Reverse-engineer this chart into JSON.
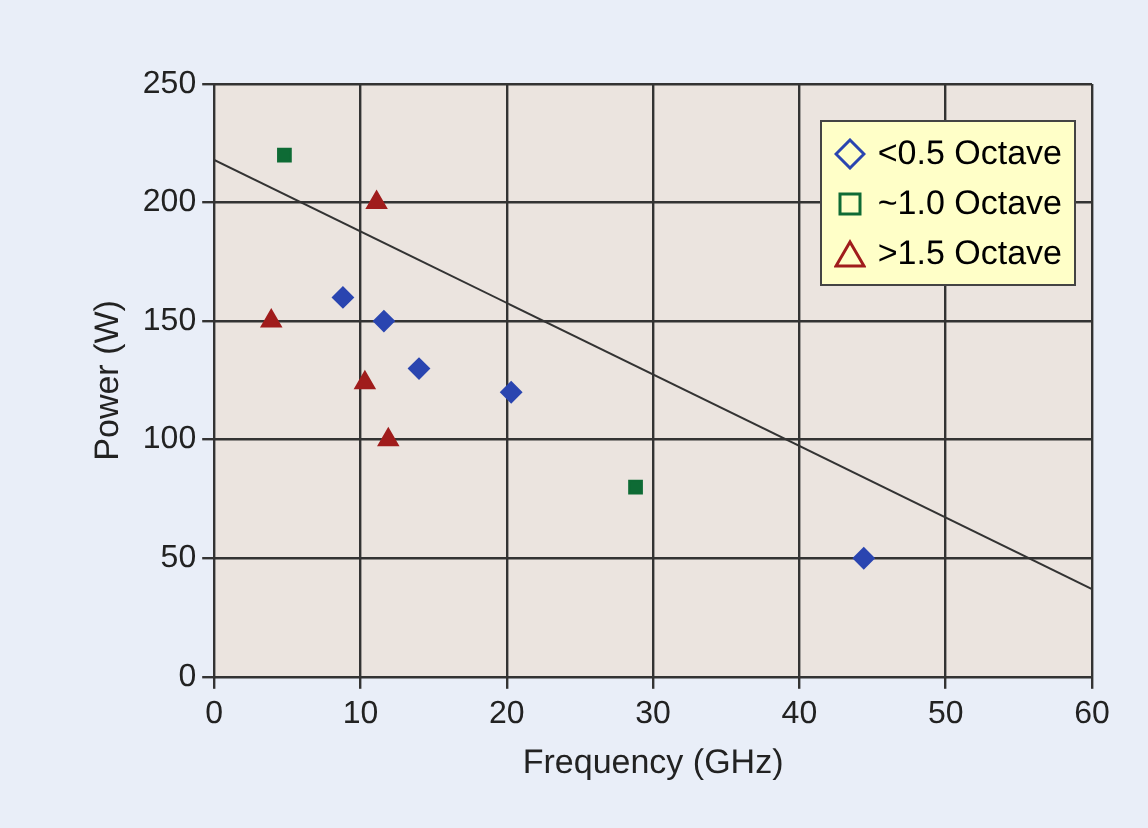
{
  "chart_data": {
    "type": "scatter",
    "xlabel": "Frequency (GHz)",
    "ylabel": "Power (W)",
    "xlim": [
      0,
      60
    ],
    "xticks": [
      0,
      10,
      20,
      30,
      40,
      50,
      60
    ],
    "ylim": [
      0,
      250
    ],
    "yticks": [
      0,
      50,
      100,
      150,
      200,
      250
    ],
    "grid": true,
    "legend": "top right",
    "series": [
      {
        "name": "<0.5 Octave",
        "color": "#2a45b0",
        "marker": "diamond",
        "x": [
          8.8,
          11.6,
          14.0,
          20.3,
          44.4
        ],
        "values": [
          160,
          150,
          130,
          120,
          50
        ]
      },
      {
        "name": "~1.0 Octave",
        "color": "#0e6b35",
        "marker": "square",
        "x": [
          4.8,
          28.8
        ],
        "values": [
          220,
          80
        ]
      },
      {
        "name": ">1.5 Octave",
        "color": "#a01c1c",
        "marker": "triangle",
        "x": [
          3.9,
          11.1,
          10.3,
          11.9
        ],
        "values": [
          150,
          200,
          124,
          100
        ]
      },
      {
        "type": "line",
        "color": "#333333",
        "marker": "none",
        "x": [
          0,
          60
        ],
        "values": [
          218,
          37
        ]
      }
    ]
  }
}
